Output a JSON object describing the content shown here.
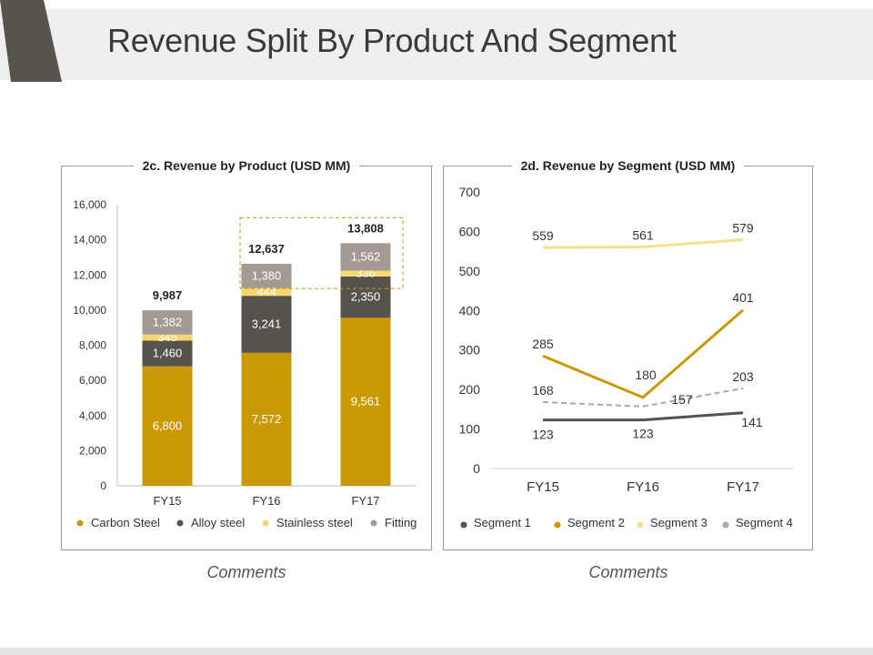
{
  "slide": {
    "title": "Revenue Split By Product And Segment",
    "comments_left": "Comments",
    "comments_right": "Comments"
  },
  "colors": {
    "carbon_steel": "#c99a06",
    "alloy_steel": "#57524c",
    "stainless_steel": "#f5d76e",
    "fitting": "#a29a93",
    "segment_1": "#57524c",
    "segment_2": "#c99a06",
    "segment_3": "#f7df8e",
    "segment_4": "#a8a8a8",
    "header_accent": "#58534d"
  },
  "chart_data": [
    {
      "type": "bar",
      "stacked": true,
      "title": "2c. Revenue by Product (USD MM)",
      "categories": [
        "FY15",
        "FY16",
        "FY17"
      ],
      "series": [
        {
          "name": "Carbon Steel",
          "values": [
            6800,
            7572,
            9561
          ],
          "labels": [
            "6,800",
            "7,572",
            "9,561"
          ]
        },
        {
          "name": "Alloy steel",
          "values": [
            1460,
            3241,
            2350
          ],
          "labels": [
            "1,460",
            "3,241",
            "2,350"
          ]
        },
        {
          "name": "Stainless steel",
          "values": [
            345,
            444,
            336
          ],
          "labels": [
            "345",
            "444",
            "336"
          ]
        },
        {
          "name": "Fitting",
          "values": [
            1382,
            1380,
            1562
          ],
          "labels": [
            "1,382",
            "1,380",
            "1,562"
          ]
        }
      ],
      "totals": [
        "9,987",
        "12,637",
        "13,808"
      ],
      "ylim": [
        0,
        16000
      ],
      "yticks": [
        "0",
        "2,000",
        "4,000",
        "6,000",
        "8,000",
        "10,000",
        "12,000",
        "14,000",
        "16,000"
      ],
      "legend": [
        "Carbon Steel",
        "Alloy steel",
        "Stainless steel",
        "Fitting"
      ],
      "legend_position": "bottom",
      "highlight": "FY16-FY17 top of stacks (dashed box)"
    },
    {
      "type": "line",
      "title": "2d. Revenue by Segment (USD MM)",
      "categories": [
        "FY15",
        "FY16",
        "FY17"
      ],
      "series": [
        {
          "name": "Segment 1",
          "values": [
            123,
            123,
            141
          ],
          "labels": [
            "123",
            "123",
            "141"
          ]
        },
        {
          "name": "Segment 2",
          "values": [
            285,
            180,
            401
          ],
          "labels": [
            "285",
            "180",
            "401"
          ]
        },
        {
          "name": "Segment 3",
          "values": [
            559,
            561,
            579
          ],
          "labels": [
            "559",
            "561",
            "579"
          ]
        },
        {
          "name": "Segment 4",
          "values": [
            168,
            157,
            203
          ],
          "labels": [
            "168",
            "157",
            "203"
          ],
          "dashed": true
        }
      ],
      "ylim": [
        0,
        700
      ],
      "yticks": [
        "0",
        "100",
        "200",
        "300",
        "400",
        "500",
        "600",
        "700"
      ],
      "legend": [
        "Segment 1",
        "Segment 2",
        "Segment 3",
        "Segment 4"
      ],
      "legend_position": "bottom"
    }
  ]
}
